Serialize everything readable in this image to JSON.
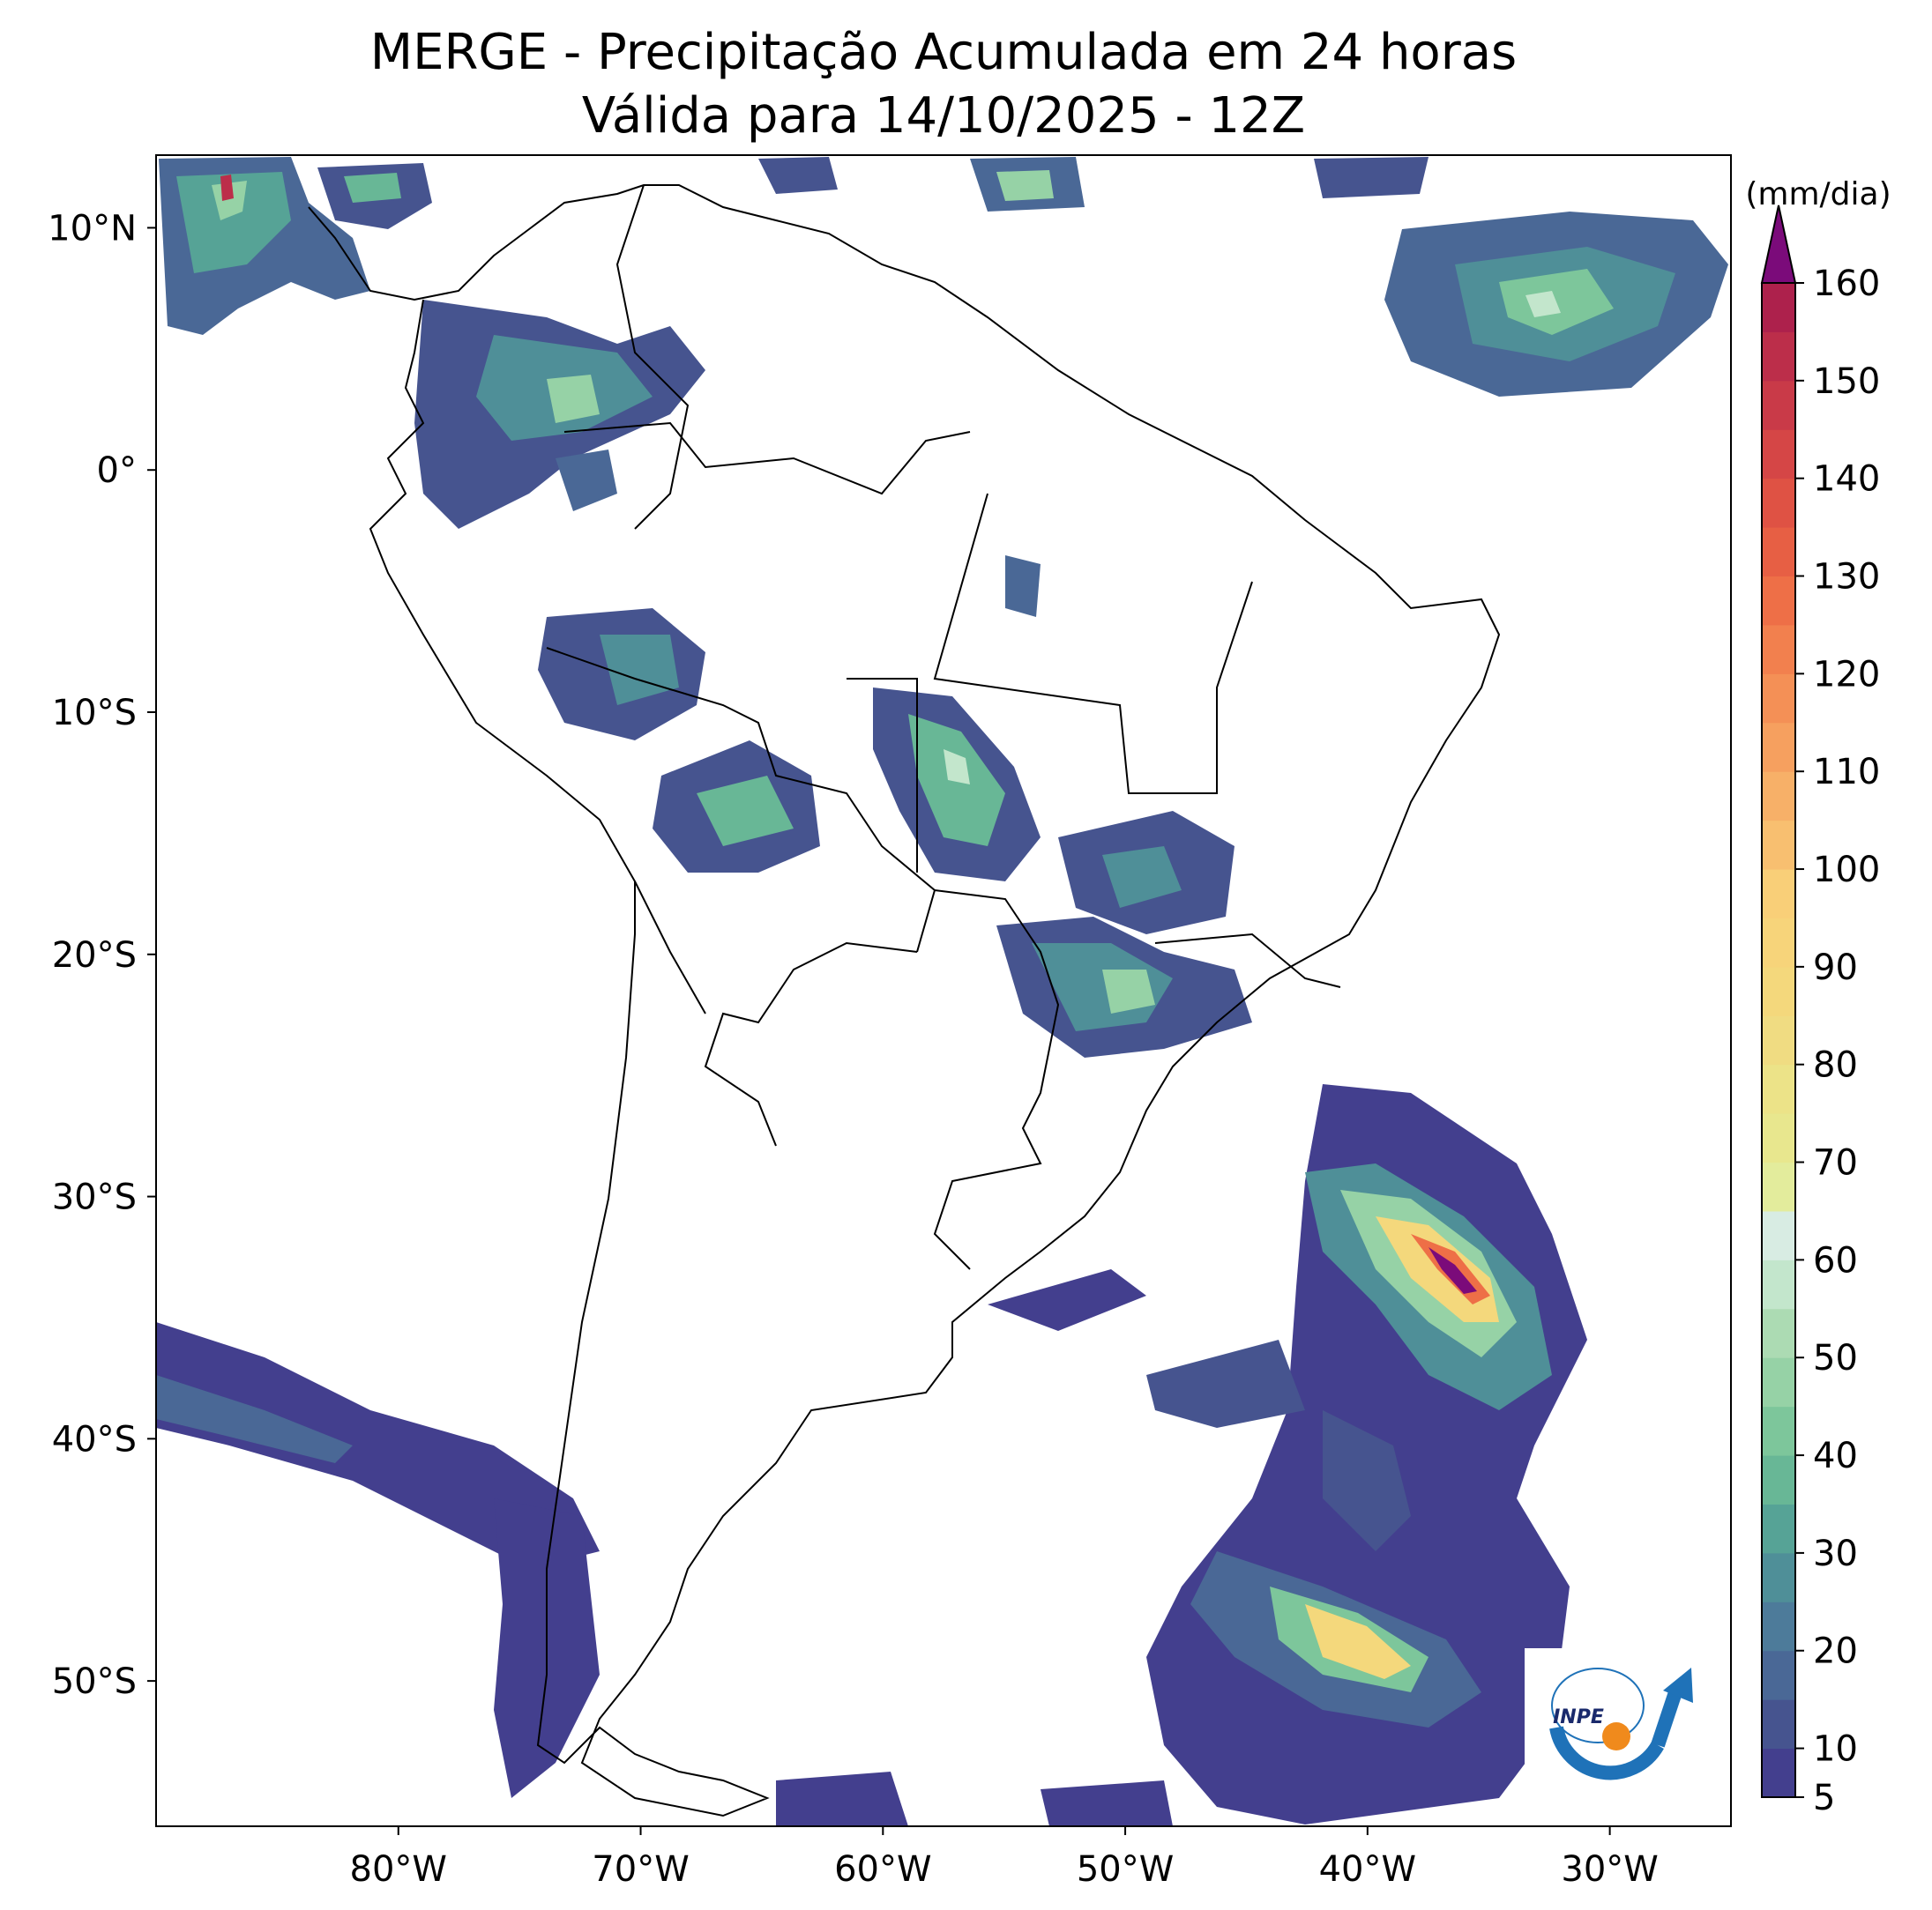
{
  "title": {
    "line1": "MERGE - Precipitação Acumulada em 24 horas",
    "line2": "Válida para 14/10/2025 - 12Z"
  },
  "map": {
    "lon_range": [
      -90,
      -25
    ],
    "lat_range": [
      -56,
      13
    ],
    "lat_ticks": [
      {
        "value": 10,
        "label": "10°N"
      },
      {
        "value": 0,
        "label": "0°"
      },
      {
        "value": -10,
        "label": "10°S"
      },
      {
        "value": -20,
        "label": "20°S"
      },
      {
        "value": -30,
        "label": "30°S"
      },
      {
        "value": -40,
        "label": "40°S"
      },
      {
        "value": -50,
        "label": "50°S"
      }
    ],
    "lon_ticks": [
      {
        "value": -80,
        "label": "80°W"
      },
      {
        "value": -70,
        "label": "70°W"
      },
      {
        "value": -60,
        "label": "60°W"
      },
      {
        "value": -50,
        "label": "50°W"
      },
      {
        "value": -40,
        "label": "40°W"
      },
      {
        "value": -30,
        "label": "30°W"
      }
    ]
  },
  "colorbar": {
    "unit_label": "(mm/dia)",
    "min": 5,
    "max": 160,
    "ticks": [
      {
        "value": 5,
        "label": "5"
      },
      {
        "value": 10,
        "label": "10"
      },
      {
        "value": 20,
        "label": "20"
      },
      {
        "value": 30,
        "label": "30"
      },
      {
        "value": 40,
        "label": "40"
      },
      {
        "value": 50,
        "label": "50"
      },
      {
        "value": 60,
        "label": "60"
      },
      {
        "value": 70,
        "label": "70"
      },
      {
        "value": 80,
        "label": "80"
      },
      {
        "value": 90,
        "label": "90"
      },
      {
        "value": 100,
        "label": "100"
      },
      {
        "value": 110,
        "label": "110"
      },
      {
        "value": 120,
        "label": "120"
      },
      {
        "value": 130,
        "label": "130"
      },
      {
        "value": 140,
        "label": "140"
      },
      {
        "value": 150,
        "label": "150"
      },
      {
        "value": 160,
        "label": "160"
      }
    ],
    "levels": [
      {
        "from": 5,
        "to": 10,
        "color": "#433f8e"
      },
      {
        "from": 10,
        "to": 15,
        "color": "#46548f"
      },
      {
        "from": 15,
        "to": 20,
        "color": "#4a6896"
      },
      {
        "from": 20,
        "to": 25,
        "color": "#4d7b9a"
      },
      {
        "from": 25,
        "to": 30,
        "color": "#4f8f98"
      },
      {
        "from": 30,
        "to": 35,
        "color": "#56a396"
      },
      {
        "from": 35,
        "to": 40,
        "color": "#68b796"
      },
      {
        "from": 40,
        "to": 45,
        "color": "#7dc69b"
      },
      {
        "from": 45,
        "to": 50,
        "color": "#96d2a6"
      },
      {
        "from": 50,
        "to": 55,
        "color": "#acdbb3"
      },
      {
        "from": 55,
        "to": 60,
        "color": "#c3e6cc"
      },
      {
        "from": 60,
        "to": 65,
        "color": "#d8ece3"
      },
      {
        "from": 65,
        "to": 70,
        "color": "#e3ec9c"
      },
      {
        "from": 70,
        "to": 75,
        "color": "#e8e78e"
      },
      {
        "from": 75,
        "to": 80,
        "color": "#ece388"
      },
      {
        "from": 80,
        "to": 85,
        "color": "#f0dc82"
      },
      {
        "from": 85,
        "to": 90,
        "color": "#f4d87c"
      },
      {
        "from": 90,
        "to": 95,
        "color": "#f7d47a"
      },
      {
        "from": 95,
        "to": 100,
        "color": "#f9cf78"
      },
      {
        "from": 100,
        "to": 105,
        "color": "#f8bf70"
      },
      {
        "from": 105,
        "to": 110,
        "color": "#f7b068"
      },
      {
        "from": 110,
        "to": 115,
        "color": "#f6a05f"
      },
      {
        "from": 115,
        "to": 120,
        "color": "#f49056"
      },
      {
        "from": 120,
        "to": 125,
        "color": "#f2804e"
      },
      {
        "from": 125,
        "to": 130,
        "color": "#ee6f47"
      },
      {
        "from": 130,
        "to": 135,
        "color": "#e75f44"
      },
      {
        "from": 135,
        "to": 140,
        "color": "#df5244"
      },
      {
        "from": 140,
        "to": 145,
        "color": "#d54646"
      },
      {
        "from": 145,
        "to": 150,
        "color": "#c93a48"
      },
      {
        "from": 150,
        "to": 155,
        "color": "#bc2e4a"
      },
      {
        "from": 155,
        "to": 160,
        "color": "#ad214c"
      }
    ],
    "over_color": "#7b0b7a"
  },
  "logo": {
    "text": "INPE"
  }
}
